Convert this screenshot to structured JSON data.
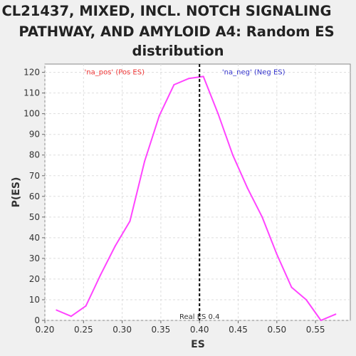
{
  "title_lines": [
    "CL21437, MIXED, INCL. NOTCH SIGNALING",
    "PATHWAY, AND AMYLOID A4: Random ES",
    "distribution"
  ],
  "chart_data": {
    "type": "line",
    "title": "CL21437, MIXED, INCL. NOTCH SIGNALING PATHWAY, AND AMYLOID A4: Random ES distribution",
    "xlabel": "ES",
    "ylabel": "P(ES)",
    "xlim": [
      0.2,
      0.595
    ],
    "ylim": [
      0,
      124
    ],
    "xticks": [
      0.2,
      0.25,
      0.3,
      0.35,
      0.4,
      0.45,
      0.5,
      0.55
    ],
    "xtick_labels": [
      "0.20",
      "0.25",
      "0.30",
      "0.35",
      "0.40",
      "0.45",
      "0.50",
      "0.55"
    ],
    "yticks": [
      0,
      10,
      20,
      30,
      40,
      50,
      60,
      70,
      80,
      90,
      100,
      110,
      120
    ],
    "grid": true,
    "series": [
      {
        "color": "#ff44ff",
        "x": [
          0.215,
          0.234,
          0.253,
          0.272,
          0.291,
          0.31,
          0.329,
          0.348,
          0.367,
          0.386,
          0.405,
          0.424,
          0.443,
          0.462,
          0.481,
          0.5,
          0.519,
          0.538,
          0.557,
          0.576
        ],
        "y": [
          5,
          2,
          7,
          22,
          36,
          48,
          77,
          99,
          114,
          117,
          118,
          100,
          80,
          64,
          50,
          32,
          16,
          10,
          0,
          3
        ]
      }
    ],
    "real_es": {
      "x": 0.4,
      "label": "Real ES 0.4",
      "color": "#000000"
    },
    "annotations": [
      {
        "text": "'na_pos' (Pos ES)",
        "color": "#ee3333",
        "x": 0.29,
        "y": 120
      },
      {
        "text": "'na_neg' (Neg ES)",
        "color": "#3333cc",
        "x": 0.47,
        "y": 120
      }
    ]
  }
}
